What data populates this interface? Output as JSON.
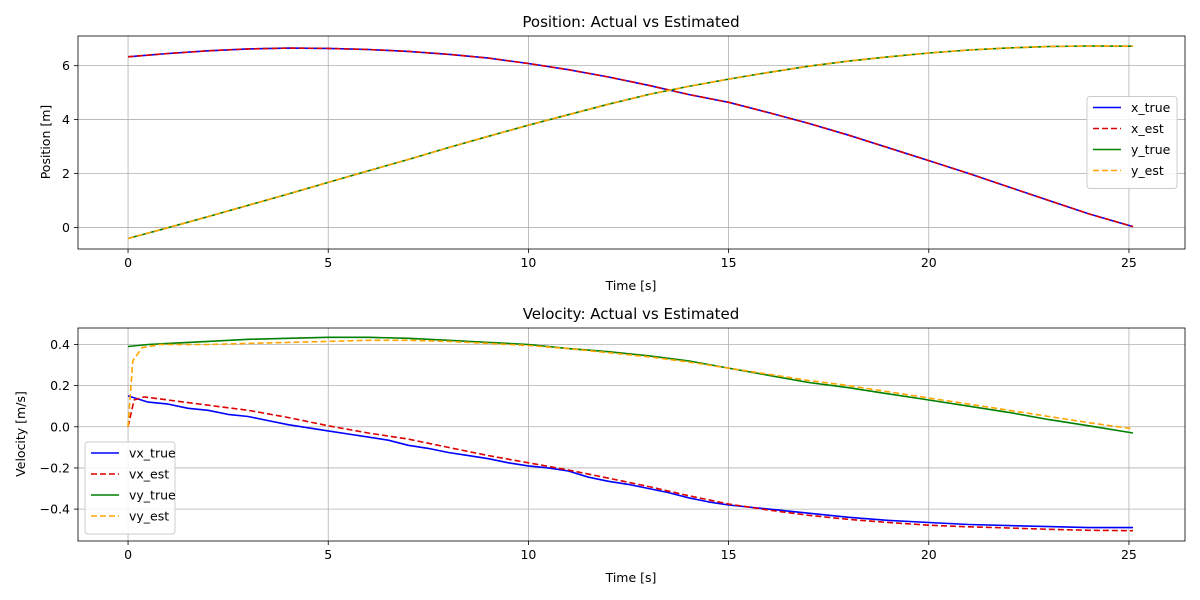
{
  "chart_data": [
    {
      "type": "line",
      "title": "Position: Actual vs Estimated",
      "xlabel": "Time [s]",
      "ylabel": "Position [m]",
      "xlim": [
        -1.25,
        26.4
      ],
      "ylim": [
        -0.8,
        7.1
      ],
      "xticks": [
        0,
        5,
        10,
        15,
        20,
        25
      ],
      "yticks": [
        0,
        2,
        4,
        6
      ],
      "grid": true,
      "legend_position": "center-right",
      "series": [
        {
          "name": "x_true",
          "color": "#0000ff",
          "dash": "solid",
          "x": [
            0,
            1,
            2,
            3,
            4,
            5,
            6,
            7,
            8,
            9,
            10,
            11,
            12,
            13,
            14,
            15,
            16,
            17,
            18,
            19,
            20,
            21,
            22,
            23,
            24,
            25.1
          ],
          "y": [
            6.33,
            6.45,
            6.55,
            6.62,
            6.65,
            6.64,
            6.6,
            6.53,
            6.42,
            6.28,
            6.08,
            5.85,
            5.58,
            5.27,
            4.93,
            4.64,
            4.26,
            3.86,
            3.42,
            2.95,
            2.48,
            2.0,
            1.5,
            1.0,
            0.5,
            0.03
          ]
        },
        {
          "name": "x_est",
          "color": "#dd0000",
          "dash": "dashed",
          "x": [
            0,
            1,
            2,
            3,
            4,
            5,
            6,
            7,
            8,
            9,
            10,
            11,
            12,
            13,
            14,
            15,
            16,
            17,
            18,
            19,
            20,
            21,
            22,
            23,
            24,
            25.1
          ],
          "y": [
            6.33,
            6.45,
            6.55,
            6.62,
            6.65,
            6.64,
            6.6,
            6.53,
            6.42,
            6.28,
            6.08,
            5.85,
            5.58,
            5.27,
            4.93,
            4.64,
            4.26,
            3.86,
            3.42,
            2.95,
            2.48,
            2.0,
            1.5,
            1.0,
            0.5,
            0.03
          ]
        },
        {
          "name": "y_true",
          "color": "#008000",
          "dash": "solid",
          "x": [
            0,
            1,
            2,
            3,
            4,
            5,
            6,
            7,
            8,
            9,
            10,
            11,
            12,
            13,
            14,
            15,
            16,
            17,
            18,
            19,
            20,
            21,
            22,
            23,
            24,
            25.1
          ],
          "y": [
            -0.41,
            -0.01,
            0.4,
            0.82,
            1.24,
            1.67,
            2.1,
            2.52,
            2.96,
            3.38,
            3.79,
            4.18,
            4.57,
            4.93,
            5.23,
            5.5,
            5.75,
            5.98,
            6.17,
            6.33,
            6.47,
            6.58,
            6.66,
            6.71,
            6.73,
            6.72
          ]
        },
        {
          "name": "y_est",
          "color": "#ffa500",
          "dash": "dashed",
          "x": [
            0,
            1,
            2,
            3,
            4,
            5,
            6,
            7,
            8,
            9,
            10,
            11,
            12,
            13,
            14,
            15,
            16,
            17,
            18,
            19,
            20,
            21,
            22,
            23,
            24,
            25.1
          ],
          "y": [
            -0.41,
            -0.01,
            0.4,
            0.82,
            1.24,
            1.67,
            2.1,
            2.52,
            2.96,
            3.38,
            3.79,
            4.18,
            4.57,
            4.93,
            5.23,
            5.5,
            5.75,
            5.98,
            6.17,
            6.33,
            6.47,
            6.58,
            6.66,
            6.71,
            6.73,
            6.72
          ]
        }
      ]
    },
    {
      "type": "line",
      "title": "Velocity: Actual vs Estimated",
      "xlabel": "Time [s]",
      "ylabel": "Velocity [m/s]",
      "xlim": [
        -1.25,
        26.4
      ],
      "ylim": [
        -0.555,
        0.48
      ],
      "xticks": [
        0,
        5,
        10,
        15,
        20,
        25
      ],
      "yticks": [
        -0.4,
        -0.2,
        0.0,
        0.2,
        0.4
      ],
      "ytick_labels": [
        "−0.4",
        "−0.2",
        "0.0",
        "0.2",
        "0.4"
      ],
      "grid": true,
      "legend_position": "lower-left",
      "series": [
        {
          "name": "vx_true",
          "color": "#0000ff",
          "dash": "solid",
          "x": [
            0,
            0.5,
            1,
            1.5,
            2,
            2.5,
            3,
            3.5,
            4,
            4.5,
            5,
            5.5,
            6,
            6.5,
            7,
            7.5,
            8,
            8.5,
            9,
            9.5,
            10,
            10.5,
            11,
            11.5,
            12,
            12.5,
            13,
            13.5,
            14,
            14.5,
            15,
            16,
            17,
            18,
            19,
            20,
            21,
            22,
            23,
            24,
            25.1
          ],
          "y": [
            0.15,
            0.12,
            0.11,
            0.09,
            0.08,
            0.06,
            0.05,
            0.03,
            0.01,
            -0.005,
            -0.02,
            -0.035,
            -0.05,
            -0.065,
            -0.09,
            -0.105,
            -0.125,
            -0.14,
            -0.155,
            -0.175,
            -0.19,
            -0.2,
            -0.215,
            -0.245,
            -0.265,
            -0.28,
            -0.3,
            -0.32,
            -0.345,
            -0.365,
            -0.38,
            -0.4,
            -0.42,
            -0.44,
            -0.455,
            -0.465,
            -0.475,
            -0.48,
            -0.485,
            -0.49,
            -0.49
          ]
        },
        {
          "name": "vx_est",
          "color": "#dd0000",
          "dash": "dashed",
          "x": [
            0,
            0.15,
            0.4,
            1,
            2,
            3,
            4,
            5,
            6,
            7,
            8,
            9,
            10,
            11,
            12,
            13,
            14,
            15,
            16,
            17,
            18,
            19,
            20,
            21,
            22,
            23,
            24,
            25.1
          ],
          "y": [
            0.0,
            0.13,
            0.145,
            0.13,
            0.105,
            0.08,
            0.045,
            0.005,
            -0.03,
            -0.06,
            -0.1,
            -0.14,
            -0.175,
            -0.21,
            -0.25,
            -0.29,
            -0.335,
            -0.375,
            -0.405,
            -0.43,
            -0.45,
            -0.465,
            -0.478,
            -0.486,
            -0.492,
            -0.498,
            -0.503,
            -0.505
          ]
        },
        {
          "name": "vy_true",
          "color": "#008000",
          "dash": "solid",
          "x": [
            0,
            0.5,
            1,
            2,
            3,
            4,
            5,
            6,
            7,
            8,
            9,
            10,
            11,
            12,
            13,
            14,
            15,
            16,
            17,
            18,
            19,
            20,
            21,
            22,
            23,
            24,
            25.1
          ],
          "y": [
            0.39,
            0.4,
            0.405,
            0.415,
            0.425,
            0.43,
            0.435,
            0.435,
            0.43,
            0.42,
            0.41,
            0.4,
            0.38,
            0.365,
            0.345,
            0.32,
            0.285,
            0.25,
            0.215,
            0.19,
            0.16,
            0.13,
            0.1,
            0.07,
            0.035,
            0.005,
            -0.03
          ]
        },
        {
          "name": "vy_est",
          "color": "#ffa500",
          "dash": "dashed",
          "x": [
            0,
            0.12,
            0.35,
            0.8,
            2,
            3,
            4,
            5,
            6,
            7,
            8,
            9,
            10,
            11,
            12,
            13,
            14,
            15,
            16,
            17,
            18,
            19,
            20,
            21,
            22,
            23,
            24,
            25.1
          ],
          "y": [
            0.0,
            0.32,
            0.385,
            0.4,
            0.4,
            0.405,
            0.41,
            0.415,
            0.42,
            0.42,
            0.415,
            0.405,
            0.395,
            0.38,
            0.36,
            0.34,
            0.315,
            0.285,
            0.255,
            0.225,
            0.2,
            0.17,
            0.14,
            0.11,
            0.08,
            0.05,
            0.02,
            -0.01
          ]
        }
      ]
    }
  ]
}
